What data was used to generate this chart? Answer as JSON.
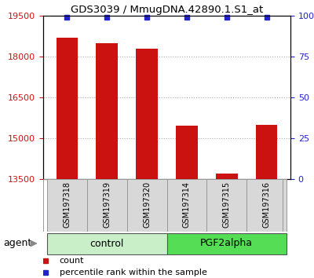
{
  "title": "GDS3039 / MmugDNA.42890.1.S1_at",
  "samples": [
    "GSM197318",
    "GSM197319",
    "GSM197320",
    "GSM197314",
    "GSM197315",
    "GSM197316"
  ],
  "counts": [
    18700,
    18500,
    18300,
    15450,
    13700,
    15500
  ],
  "percentile_ranks": [
    99,
    99,
    99,
    99,
    99,
    99
  ],
  "groups": [
    {
      "label": "control",
      "color_light": "#d0f0d0",
      "color_dark": "#50dd50"
    },
    {
      "label": "PGF2alpha",
      "color_light": "#50dd50",
      "color_dark": "#50dd50"
    }
  ],
  "ylim_left": [
    13500,
    19500
  ],
  "yticks_left": [
    13500,
    15000,
    16500,
    18000,
    19500
  ],
  "ylim_right": [
    0,
    100
  ],
  "yticks_right": [
    0,
    25,
    50,
    75,
    100
  ],
  "bar_color": "#cc1111",
  "marker_color": "#2222cc",
  "background_color": "#ffffff",
  "grid_color": "#aaaaaa",
  "tick_label_color_left": "#cc1111",
  "tick_label_color_right": "#2222cc",
  "agent_label": "agent",
  "legend_count_label": "count",
  "legend_percentile_label": "percentile rank within the sample",
  "control_color": "#c8efc8",
  "pgf_color": "#55dd55"
}
